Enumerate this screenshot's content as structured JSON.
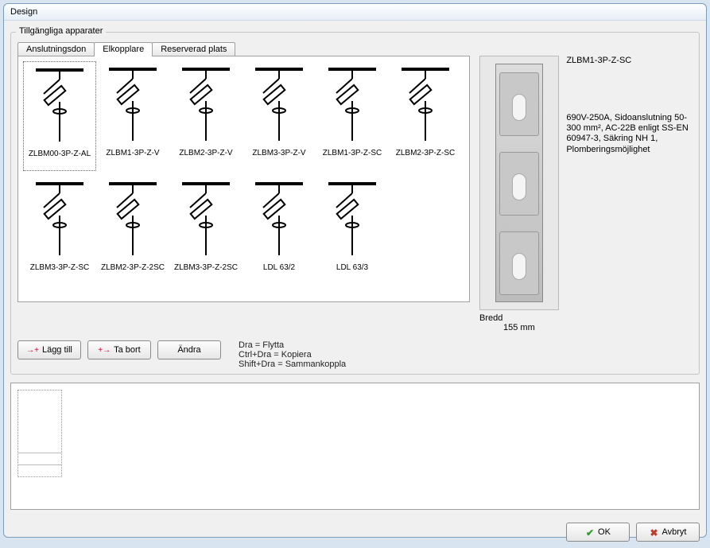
{
  "window": {
    "title": "Design"
  },
  "groupbox": {
    "title": "Tillgängliga apparater"
  },
  "tabs": [
    {
      "label": "Anslutningsdon",
      "active": false
    },
    {
      "label": "Elkopplare",
      "active": true
    },
    {
      "label": "Reserverad plats",
      "active": false
    }
  ],
  "items": [
    {
      "label": "ZLBM00-3P-Z-AL",
      "selected": true
    },
    {
      "label": "ZLBM1-3P-Z-V"
    },
    {
      "label": "ZLBM2-3P-Z-V"
    },
    {
      "label": "ZLBM3-3P-Z-V"
    },
    {
      "label": "ZLBM1-3P-Z-SC"
    },
    {
      "label": "ZLBM2-3P-Z-SC"
    },
    {
      "label": "ZLBM3-3P-Z-SC"
    },
    {
      "label": "ZLBM2-3P-Z-2SC"
    },
    {
      "label": "ZLBM3-3P-Z-2SC"
    },
    {
      "label": "LDL 63/2"
    },
    {
      "label": "LDL 63/3"
    }
  ],
  "preview": {
    "title": "ZLBM1-3P-Z-SC",
    "desc": "690V-250A, Sidoanslutning 50-300 mm², AC-22B enligt SS-EN 60947-3, Säkring NH 1, Plomberingsmöjlighet",
    "width_label": "Bredd",
    "width_value": "155 mm"
  },
  "buttons": {
    "add": "Lägg till",
    "remove": "Ta bort",
    "edit": "Ändra"
  },
  "hints": {
    "l1": "Dra = Flytta",
    "l2": "Ctrl+Dra = Kopiera",
    "l3": "Shift+Dra = Sammankoppla"
  },
  "footer": {
    "ok": "OK",
    "cancel": "Avbryt"
  },
  "colors": {
    "window_border": "#7b9ebd",
    "panel_bg": "#f0f0f0",
    "accent_ok": "#2a9d2a",
    "accent_cancel": "#c0392b"
  }
}
